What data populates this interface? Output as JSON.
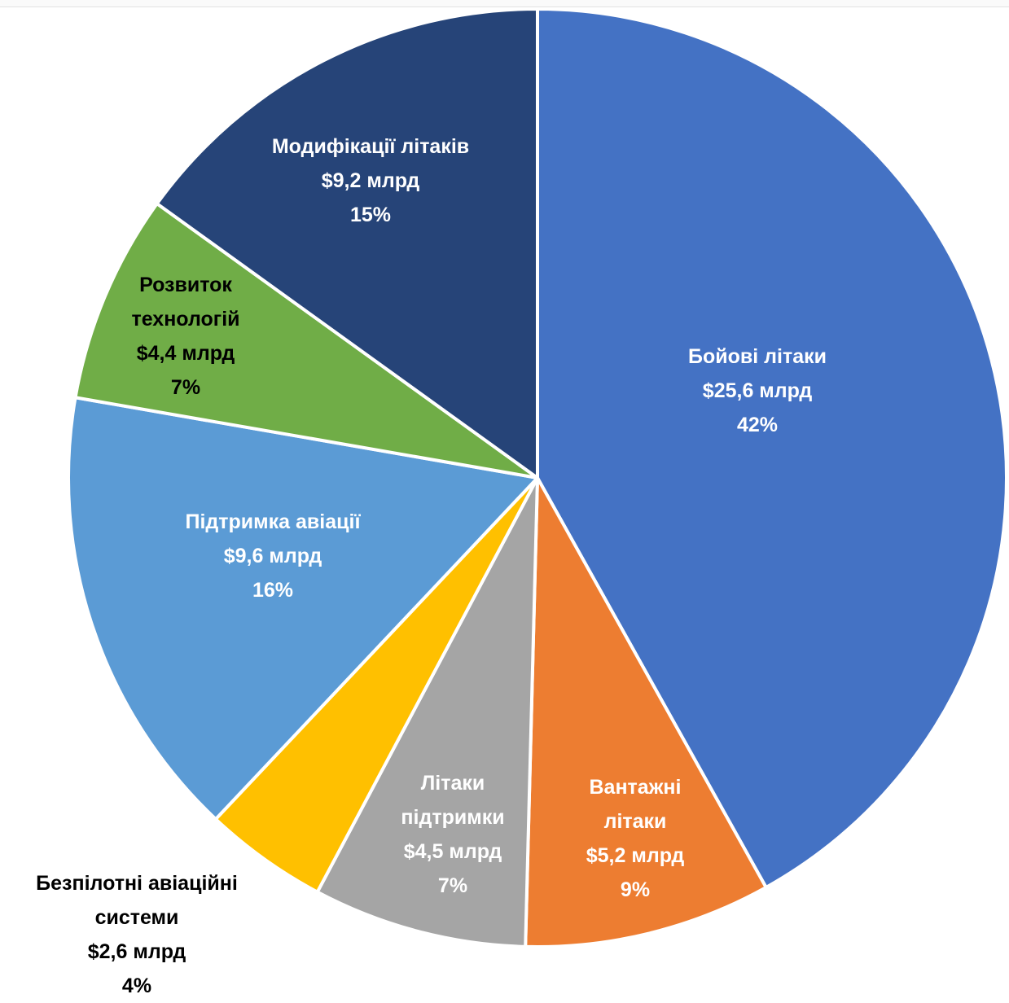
{
  "chart_data": {
    "type": "pie",
    "title": "",
    "slices": [
      {
        "name": "Бойові літаки",
        "lines": [
          "Бойові літаки"
        ],
        "amount": "$25,6 млрд",
        "percent": "42%",
        "value": 25.6,
        "color": "#4472C4",
        "label_color": "#ffffff"
      },
      {
        "name": "Вантажні літаки",
        "lines": [
          "Вантажні",
          "літаки"
        ],
        "amount": "$5,2 млрд",
        "percent": "9%",
        "value": 5.2,
        "color": "#ED7D31",
        "label_color": "#ffffff"
      },
      {
        "name": "Літаки підтримки",
        "lines": [
          "Літаки",
          "підтримки"
        ],
        "amount": "$4,5 млрд",
        "percent": "7%",
        "value": 4.5,
        "color": "#A5A5A5",
        "label_color": "#ffffff"
      },
      {
        "name": "Безпілотні авіаційні системи",
        "lines": [
          "Безпілотні авіаційні",
          "системи"
        ],
        "amount": "$2,6 млрд",
        "percent": "4%",
        "value": 2.6,
        "color": "#FFC000",
        "label_color": "#000000"
      },
      {
        "name": "Підтримка авіації",
        "lines": [
          "Підтримка авіації"
        ],
        "amount": "$9,6 млрд",
        "percent": "16%",
        "value": 9.6,
        "color": "#5B9BD5",
        "label_color": "#ffffff"
      },
      {
        "name": "Розвиток технологій",
        "lines": [
          "Розвиток",
          "технологій"
        ],
        "amount": "$4,4 млрд",
        "percent": "7%",
        "value": 4.4,
        "color": "#70AD47",
        "label_color": "#000000"
      },
      {
        "name": "Модифікації літаків",
        "lines": [
          "Модифікації літаків"
        ],
        "amount": "$9,2 млрд",
        "percent": "15%",
        "value": 9.2,
        "color": "#264478",
        "label_color": "#ffffff"
      }
    ]
  }
}
